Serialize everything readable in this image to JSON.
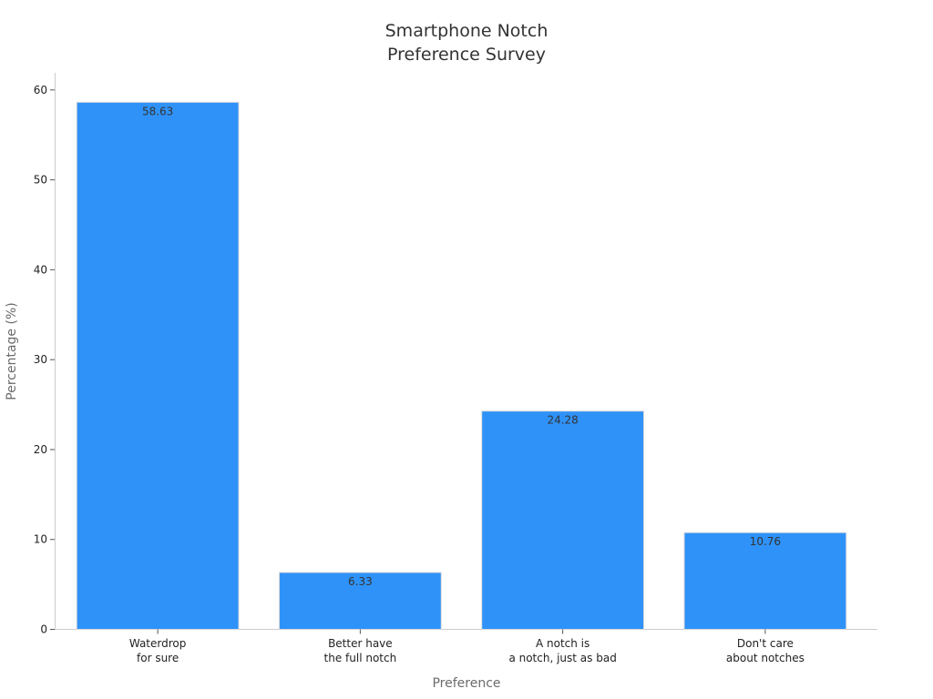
{
  "chart_data": {
    "type": "bar",
    "title": [
      "Smartphone Notch",
      "Preference Survey"
    ],
    "xlabel": "Preference",
    "ylabel": "Percentage (%)",
    "categories": [
      [
        "Waterdrop",
        "for sure"
      ],
      [
        "Better have",
        "the full notch"
      ],
      [
        "A notch is",
        "a notch, just as bad"
      ],
      [
        "Don't care",
        "about notches"
      ]
    ],
    "values": [
      58.63,
      6.33,
      24.28,
      10.76
    ],
    "data_labels": [
      "58.63",
      "6.33",
      "24.28",
      "10.76"
    ],
    "ylim": [
      0,
      61.5
    ],
    "yticks": [
      0,
      10,
      20,
      30,
      40,
      50,
      60
    ],
    "grid": false,
    "legend": "none",
    "colors": {
      "bar": "#2f92f9",
      "text": "#333333",
      "axis": "#cccccc"
    }
  }
}
